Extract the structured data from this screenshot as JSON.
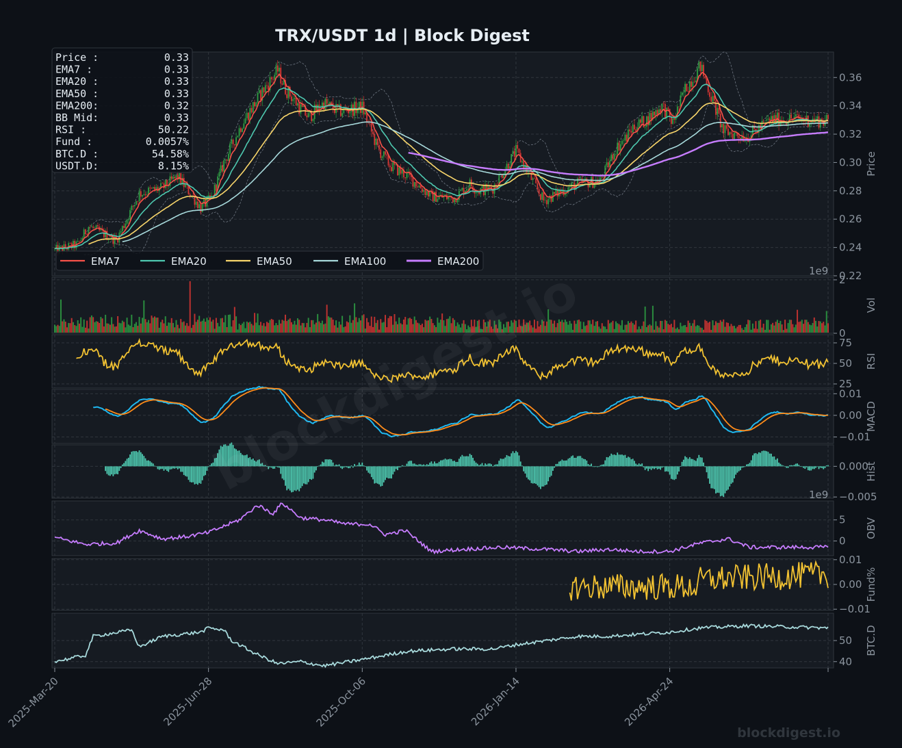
{
  "title": "TRX/USDT  1d  |  Block Digest",
  "watermark": "blockdigest.io",
  "footer_brand": "blockdigest.io",
  "colors": {
    "background": "#0d1117",
    "panel": "#161b22",
    "grid": "#30363d",
    "text": "#e6edf3",
    "tick": "#8b949e",
    "up": "#2ea043",
    "down": "#da3633"
  },
  "info_box": [
    {
      "label": "Price :",
      "value": "0.33"
    },
    {
      "label": "EMA7  :",
      "value": "0.33"
    },
    {
      "label": "EMA20 :",
      "value": "0.33"
    },
    {
      "label": "EMA50 :",
      "value": "0.33"
    },
    {
      "label": "EMA200:",
      "value": "0.32"
    },
    {
      "label": "BB Mid:",
      "value": "0.33"
    },
    {
      "label": "RSI   :",
      "value": "50.22"
    },
    {
      "label": "Fund  :",
      "value": "0.0057%"
    },
    {
      "label": "BTC.D :",
      "value": "54.58%"
    },
    {
      "label": "USDT.D:",
      "value": "8.15%"
    }
  ],
  "legend": [
    {
      "name": "EMA7",
      "color": "#f85149"
    },
    {
      "name": "EMA20",
      "color": "#4ec9b0"
    },
    {
      "name": "EMA50",
      "color": "#f9d66b"
    },
    {
      "name": "EMA100",
      "color": "#a8dadc"
    },
    {
      "name": "EMA200",
      "color": "#c77dff"
    }
  ],
  "chart_data": {
    "type": "line",
    "x_ticks": [
      "2025-Mar-20",
      "2025-Jun-28",
      "2025-Oct-06",
      "2026-Jan-14",
      "2026-Apr-24"
    ],
    "x_range_days": [
      0,
      503
    ],
    "price_anchors": {
      "days": [
        0,
        15,
        22,
        40,
        55,
        70,
        80,
        95,
        102,
        110,
        122,
        135,
        145,
        150,
        160,
        165,
        175,
        185,
        200,
        210,
        218,
        230,
        245,
        260,
        270,
        275,
        285,
        300,
        318,
        330,
        340,
        355,
        365,
        372,
        376,
        385,
        395,
        402,
        410,
        420,
        435,
        450,
        465,
        480,
        503
      ],
      "close": [
        0.238,
        0.242,
        0.255,
        0.245,
        0.278,
        0.282,
        0.29,
        0.268,
        0.275,
        0.3,
        0.328,
        0.35,
        0.365,
        0.352,
        0.338,
        0.332,
        0.342,
        0.336,
        0.339,
        0.31,
        0.298,
        0.29,
        0.276,
        0.275,
        0.285,
        0.28,
        0.282,
        0.308,
        0.273,
        0.28,
        0.285,
        0.287,
        0.31,
        0.318,
        0.325,
        0.33,
        0.34,
        0.328,
        0.352,
        0.368,
        0.322,
        0.318,
        0.33,
        0.331,
        0.329
      ]
    },
    "panels": [
      {
        "name": "Price",
        "ylabel": "Price",
        "yticks": [
          0.22,
          0.24,
          0.26,
          0.28,
          0.3,
          0.32,
          0.34,
          0.36
        ],
        "ylim": [
          0.22,
          0.378
        ],
        "series": [
          "Candles",
          "EMA7",
          "EMA20",
          "EMA50",
          "EMA100",
          "EMA200",
          "Bollinger Bands"
        ]
      },
      {
        "name": "Vol",
        "ylabel": "Vol",
        "yticks": [
          "0",
          "2"
        ],
        "multiplier": "1e9",
        "ylim": [
          0,
          2.1
        ]
      },
      {
        "name": "RSI",
        "ylabel": "RSI",
        "yticks": [
          25,
          50,
          75
        ],
        "ylim": [
          20,
          85
        ]
      },
      {
        "name": "MACD",
        "ylabel": "MACD",
        "yticks": [
          -0.01,
          0.0,
          0.01
        ],
        "ylim": [
          -0.013,
          0.012
        ]
      },
      {
        "name": "Hist",
        "ylabel": "Hist",
        "yticks": [
          -0.005,
          0.0
        ],
        "ylim": [
          -0.0052,
          0.0035
        ]
      },
      {
        "name": "OBV",
        "ylabel": "OBV",
        "yticks": [
          0,
          5
        ],
        "multiplier": "1e9",
        "ylim": [
          -3.5,
          9.5
        ]
      },
      {
        "name": "Fund%",
        "ylabel": "Fund%",
        "yticks": [
          -0.01,
          0.0,
          0.01
        ],
        "ylim": [
          -0.0105,
          0.0105
        ],
        "start_day": 335
      },
      {
        "name": "BTC.D",
        "ylabel": "BTC.D",
        "yticks": [
          40,
          50
        ],
        "ylim": [
          37,
          63
        ]
      }
    ],
    "obv_anchors": {
      "days": [
        0,
        20,
        40,
        55,
        70,
        85,
        100,
        120,
        132,
        142,
        148,
        160,
        175,
        190,
        205,
        215,
        228,
        245,
        265,
        290,
        320,
        340,
        360,
        380,
        400,
        420,
        438,
        452,
        470,
        500
      ],
      "values": [
        0.8,
        -0.8,
        -0.5,
        2.5,
        0.5,
        1.0,
        2.0,
        5.0,
        8.5,
        6.5,
        9.0,
        5.5,
        5.0,
        4.0,
        4.0,
        1.5,
        2.5,
        -2.5,
        -2.0,
        -1.5,
        -2.0,
        -2.5,
        -2.0,
        -2.5,
        -2.5,
        -0.5,
        0.5,
        -1.5,
        -1.5,
        -1.5
      ]
    },
    "btcd_anchors": {
      "days": [
        0,
        20,
        25,
        50,
        55,
        70,
        95,
        100,
        110,
        115,
        130,
        145,
        160,
        175,
        200,
        230,
        260,
        285,
        300,
        340,
        360,
        400,
        420,
        450,
        503
      ],
      "values": [
        40,
        43,
        52,
        55,
        47,
        52,
        54,
        56,
        55,
        50,
        44,
        39,
        40,
        38,
        41,
        45,
        46,
        46,
        48,
        52,
        52,
        54,
        56,
        57,
        56
      ]
    }
  }
}
